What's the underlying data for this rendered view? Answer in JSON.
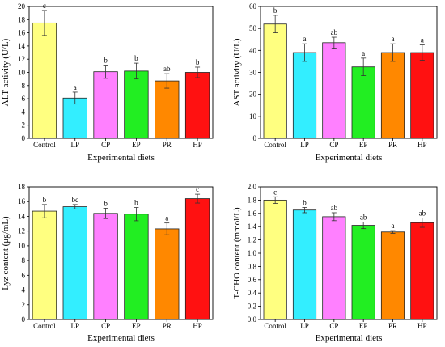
{
  "chart_data": [
    {
      "type": "bar",
      "ylabel": "ALT activity (U/L)",
      "xlabel": "Experimental diets",
      "categories": [
        "Control",
        "LP",
        "CP",
        "EP",
        "PR",
        "HP"
      ],
      "values": [
        17.5,
        6.1,
        10.1,
        10.2,
        8.7,
        10.0
      ],
      "errors": [
        1.9,
        0.9,
        1.0,
        1.2,
        1.1,
        0.8
      ],
      "significance": [
        "c",
        "a",
        "b",
        "b",
        "ab",
        "b"
      ],
      "ylim": [
        0,
        20
      ],
      "yticks": [
        0,
        2,
        4,
        6,
        8,
        10,
        12,
        14,
        16,
        18,
        20
      ]
    },
    {
      "type": "bar",
      "ylabel": "AST activity (U/L)",
      "xlabel": "Experimental diets",
      "categories": [
        "Control",
        "LP",
        "CP",
        "EP",
        "PR",
        "HP"
      ],
      "values": [
        52.0,
        39.0,
        43.5,
        32.5,
        39.0,
        39.0
      ],
      "errors": [
        4.0,
        4.0,
        2.5,
        4.0,
        4.0,
        3.5
      ],
      "significance": [
        "b",
        "a",
        "ab",
        "a",
        "a",
        "a"
      ],
      "ylim": [
        0,
        60
      ],
      "yticks": [
        0,
        10,
        20,
        30,
        40,
        50,
        60
      ]
    },
    {
      "type": "bar",
      "ylabel": "Lyz content (μg/mL)",
      "xlabel": "Experimental diets",
      "categories": [
        "Control",
        "LP",
        "CP",
        "EP",
        "PR",
        "HP"
      ],
      "values": [
        14.7,
        15.3,
        14.4,
        14.3,
        12.3,
        16.4
      ],
      "errors": [
        0.9,
        0.3,
        0.7,
        0.9,
        0.8,
        0.6
      ],
      "significance": [
        "b",
        "bc",
        "b",
        "b",
        "a",
        "c"
      ],
      "ylim": [
        0,
        18
      ],
      "yticks": [
        0,
        2,
        4,
        6,
        8,
        10,
        12,
        14,
        16,
        18
      ]
    },
    {
      "type": "bar",
      "ylabel": "T-CHO content (mmol/L)",
      "xlabel": "Experimental diets",
      "categories": [
        "Control",
        "LP",
        "CP",
        "EP",
        "PR",
        "HP"
      ],
      "values": [
        1.8,
        1.65,
        1.55,
        1.42,
        1.32,
        1.46
      ],
      "errors": [
        0.05,
        0.04,
        0.06,
        0.05,
        0.02,
        0.07
      ],
      "significance": [
        "c",
        "b",
        "ab",
        "ab",
        "a",
        "ab"
      ],
      "ylim": [
        0,
        2.0
      ],
      "yticks": [
        0.0,
        0.2,
        0.4,
        0.6,
        0.8,
        1.0,
        1.2,
        1.4,
        1.6,
        1.8,
        2.0
      ]
    }
  ],
  "colors": [
    "#ffff80",
    "#33eeff",
    "#ff80ff",
    "#22ee22",
    "#ff8800",
    "#ff1111"
  ]
}
